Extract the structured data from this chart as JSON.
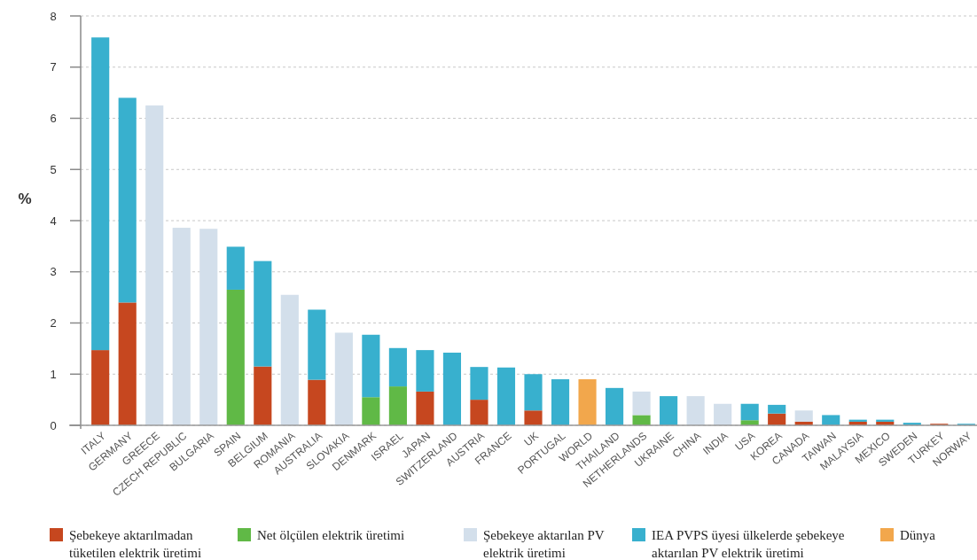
{
  "chart_data": {
    "type": "bar",
    "ylabel": "%",
    "stacked": true,
    "grid": "y",
    "legend": "bottom",
    "ylim": [
      0,
      8
    ],
    "yticks": [
      0,
      1,
      2,
      3,
      4,
      5,
      6,
      7,
      8
    ],
    "categories": [
      "ITALY",
      "GERMANY",
      "GREECE",
      "CZECH REPUBLIC",
      "BULGARIA",
      "SPAIN",
      "BELGIUM",
      "ROMANIA",
      "AUSTRALIA",
      "SLOVAKIA",
      "DENMARK",
      "ISRAEL",
      "JAPAN",
      "SWITZERLAND",
      "AUSTRIA",
      "FRANCE",
      "UK",
      "PORTUGAL",
      "WORLD",
      "THAILAND",
      "NETHERLANDS",
      "UKRAINE",
      "CHINA",
      "INDIA",
      "USA",
      "KOREA",
      "CANADA",
      "TAIWAN",
      "MALAYSIA",
      "MEXICO",
      "SWEDEN",
      "TURKEY",
      "NORWAY"
    ],
    "series": [
      {
        "name": "Şebekeye aktarılmadan tüketilen elektrik üretimi",
        "color": "#c6471f",
        "values": [
          1.47,
          2.4,
          null,
          null,
          null,
          null,
          1.15,
          null,
          0.89,
          null,
          null,
          null,
          0.66,
          null,
          0.5,
          null,
          0.29,
          null,
          null,
          null,
          null,
          null,
          null,
          null,
          null,
          0.23,
          0.07,
          null,
          0.07,
          0.07,
          null,
          0.03,
          null
        ]
      },
      {
        "name": "Net ölçülen elektrik üretimi",
        "color": "#60b946",
        "values": [
          null,
          null,
          null,
          null,
          null,
          2.65,
          null,
          null,
          null,
          null,
          0.55,
          0.76,
          null,
          null,
          null,
          null,
          null,
          null,
          null,
          null,
          0.2,
          null,
          null,
          null,
          0.1,
          null,
          null,
          null,
          null,
          null,
          null,
          null,
          null
        ]
      },
      {
        "name": "Şebekeye aktarılan PV elektrik üretimi",
        "color": "#d3dfeb",
        "values": [
          null,
          null,
          6.25,
          3.86,
          3.84,
          null,
          null,
          2.55,
          null,
          1.81,
          null,
          null,
          null,
          null,
          null,
          null,
          null,
          null,
          null,
          null,
          0.46,
          null,
          0.57,
          0.42,
          null,
          null,
          0.22,
          null,
          null,
          null,
          null,
          null,
          null
        ]
      },
      {
        "name": "IEA PVPS üyesi ülkelerde şebekeye aktarılan PV elektrik üretimi",
        "color": "#38b0ce",
        "values": [
          6.11,
          4.0,
          null,
          null,
          null,
          0.84,
          2.06,
          null,
          1.37,
          null,
          1.22,
          0.75,
          0.81,
          1.42,
          0.64,
          1.13,
          0.71,
          0.9,
          null,
          0.73,
          null,
          0.57,
          null,
          null,
          0.32,
          0.17,
          null,
          0.2,
          0.04,
          0.04,
          0.05,
          null,
          0.03
        ]
      },
      {
        "name": "Dünya",
        "color": "#f2a74c",
        "values": [
          null,
          null,
          null,
          null,
          null,
          null,
          null,
          null,
          null,
          null,
          null,
          null,
          null,
          null,
          null,
          null,
          null,
          null,
          0.9,
          null,
          null,
          null,
          null,
          null,
          null,
          null,
          null,
          null,
          null,
          null,
          null,
          null,
          null
        ]
      }
    ]
  }
}
